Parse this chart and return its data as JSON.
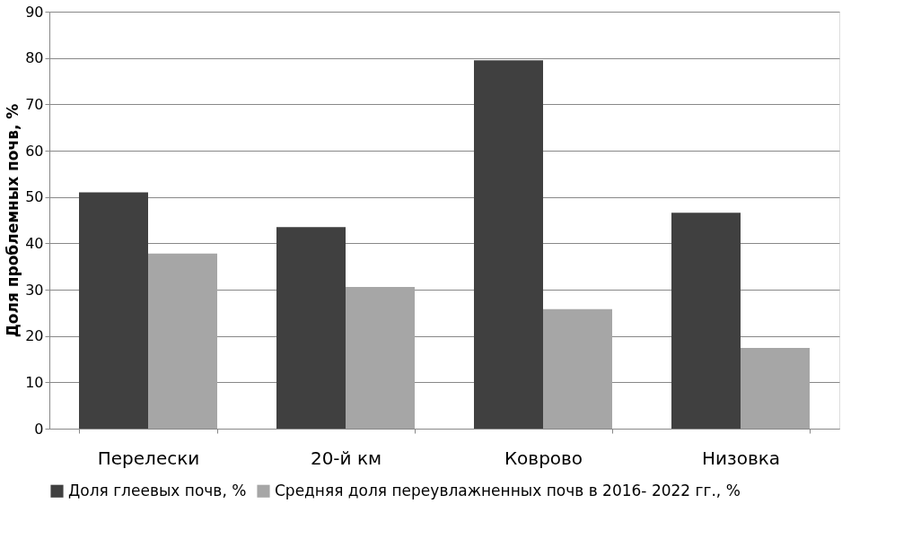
{
  "chart_data": {
    "type": "bar",
    "ylabel": "Доля проблемных почв, %",
    "categories": [
      "Перелески",
      "20-й км",
      "Коврово",
      "Низовка"
    ],
    "series": [
      {
        "name": "Доля глеевых почв, %",
        "color": "#404040",
        "values": [
          51,
          43.5,
          79.5,
          46.6
        ]
      },
      {
        "name": "Средняя доля переувлажненных почв в 2016- 2022 гг., %",
        "color": "#a6a6a6",
        "values": [
          37.8,
          30.6,
          25.8,
          17.4
        ]
      }
    ],
    "ylim": [
      0,
      90
    ],
    "yticks": [
      0,
      10,
      20,
      30,
      40,
      50,
      60,
      70,
      80,
      90
    ],
    "grid": "y",
    "legend": "bottom"
  }
}
